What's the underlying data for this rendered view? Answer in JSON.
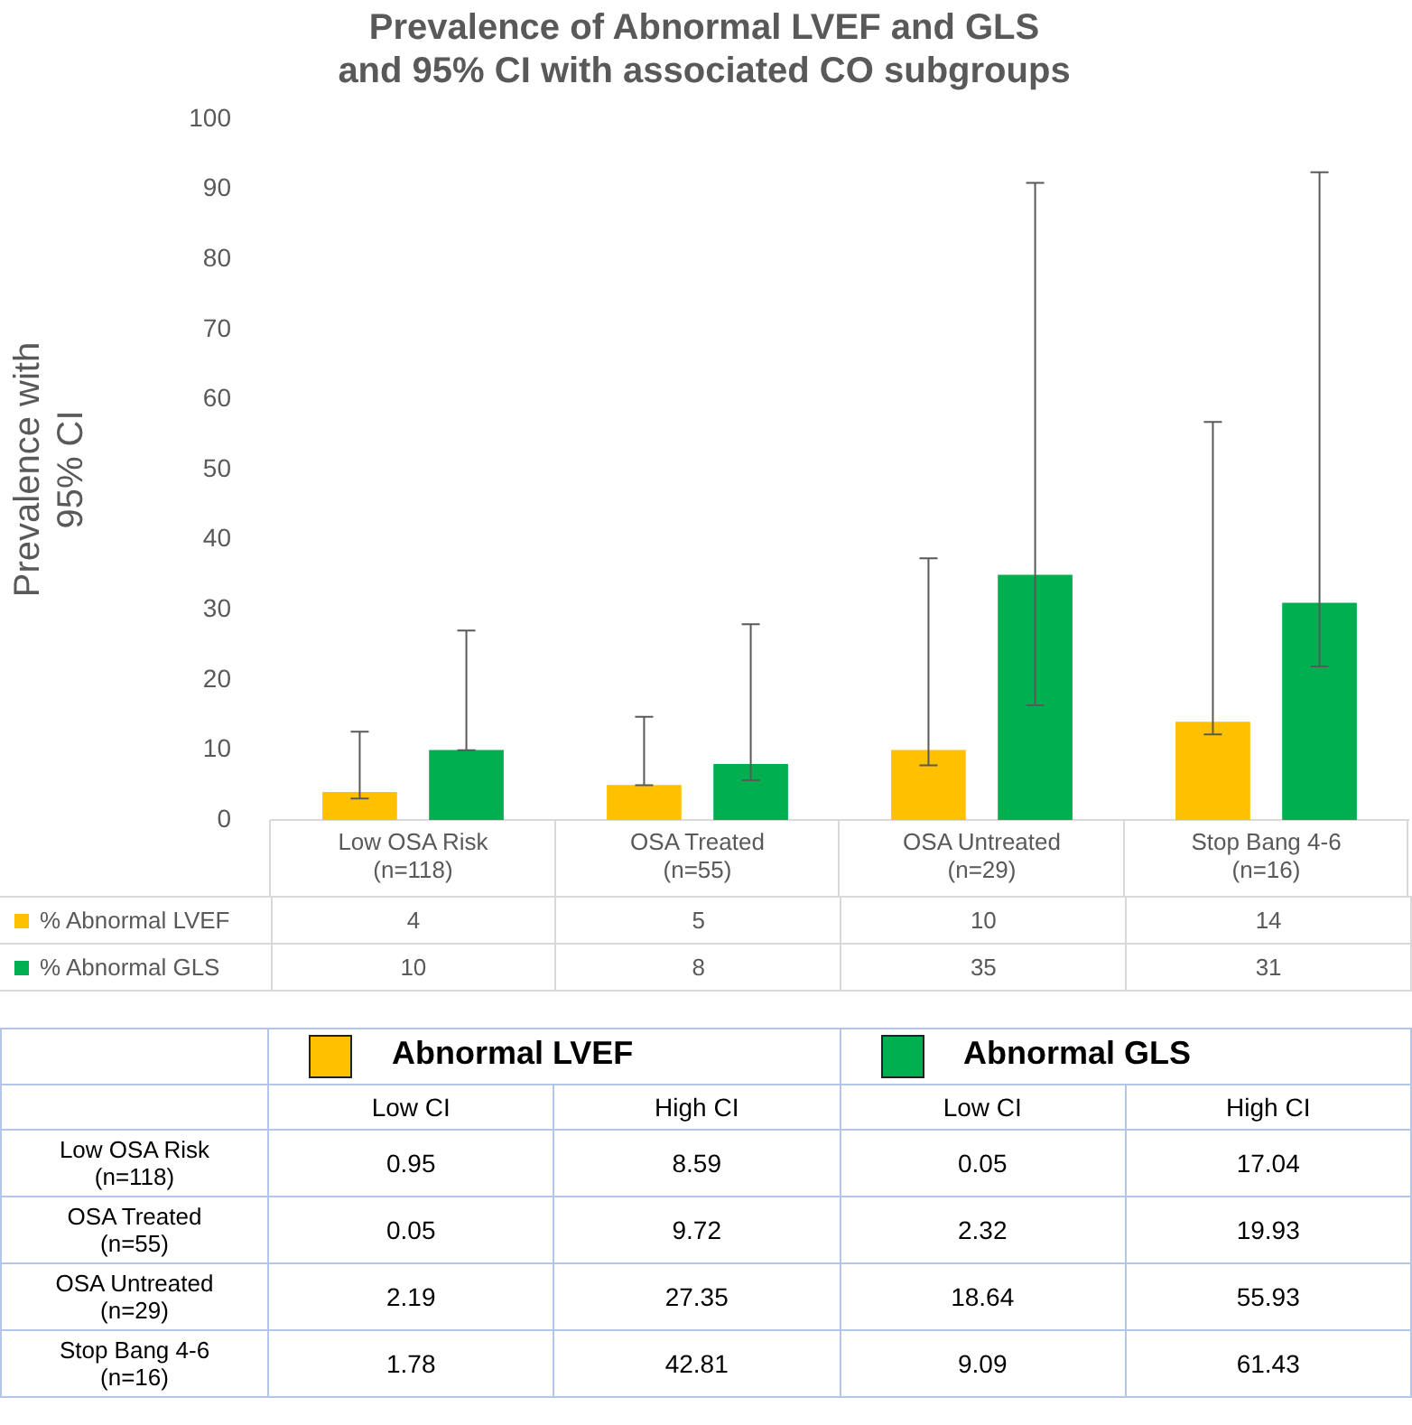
{
  "chart_data": [
    {
      "type": "bar",
      "title": "Prevalence of Abnormal LVEF and GLS\nand 95% CI with associated CO subgroups",
      "ylabel": "Prevalence with\n95% CI",
      "categories": [
        "Low OSA Risk\n(n=118)",
        "OSA Treated\n(n=55)",
        "OSA Untreated\n(n=29)",
        "Stop Bang 4-6\n(n=16)"
      ],
      "ylim": [
        0,
        100
      ],
      "yticks": [
        0,
        10,
        20,
        30,
        40,
        50,
        60,
        70,
        80,
        90,
        100
      ],
      "data_labels": true,
      "legend": "bottom",
      "series": [
        {
          "name": "% Abnormal LVEF",
          "color": "#ffc000",
          "values": [
            4,
            5,
            10,
            14
          ],
          "errors": [
            [
              3.05,
              12.59
            ],
            [
              4.95,
              14.72
            ],
            [
              7.81,
              37.35
            ],
            [
              12.22,
              56.81
            ]
          ]
        },
        {
          "name": "% Abnormal GLS",
          "color": "#00b050",
          "values": [
            10,
            8,
            35,
            31
          ],
          "errors": [
            [
              9.95,
              27.04
            ],
            [
              5.68,
              27.93
            ],
            [
              16.36,
              90.93
            ],
            [
              21.91,
              92.43
            ]
          ]
        }
      ]
    },
    {
      "type": "other",
      "data_labels": true,
      "categories": [
        "Low OSA Risk\n(n=118)",
        "OSA Treated\n(n=55)",
        "OSA Untreated\n(n=29)",
        "Stop Bang 4-6\n(n=16)"
      ],
      "annotations": [
        "Abnormal LVEF",
        "Abnormal GLS"
      ],
      "series": [
        {
          "name": "Low CI",
          "values": [
            0.95,
            0.05,
            2.19,
            1.78
          ]
        },
        {
          "name": "High CI",
          "values": [
            8.59,
            9.72,
            27.35,
            42.81
          ]
        },
        {
          "name": "Low CI",
          "values": [
            0.05,
            2.32,
            18.64,
            9.09
          ]
        },
        {
          "name": "High CI",
          "values": [
            17.04,
            19.93,
            55.93,
            61.43
          ]
        }
      ]
    }
  ]
}
